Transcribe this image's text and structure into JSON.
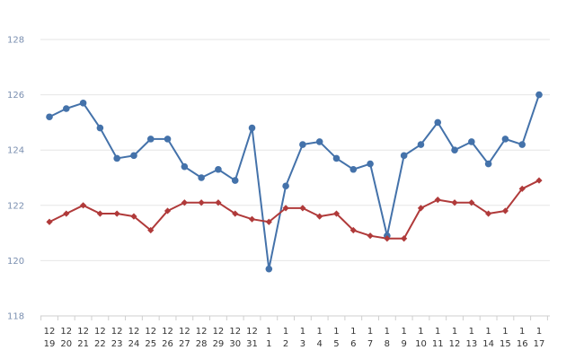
{
  "chart_data": {
    "type": "line",
    "title": "",
    "xlabel": "",
    "ylabel": "",
    "ylim": [
      118,
      128
    ],
    "yticks": [
      118,
      120,
      122,
      124,
      126,
      128
    ],
    "grid": true,
    "categories": [
      [
        "12",
        "19"
      ],
      [
        "12",
        "20"
      ],
      [
        "12",
        "21"
      ],
      [
        "12",
        "22"
      ],
      [
        "12",
        "23"
      ],
      [
        "12",
        "24"
      ],
      [
        "12",
        "25"
      ],
      [
        "12",
        "26"
      ],
      [
        "12",
        "27"
      ],
      [
        "12",
        "28"
      ],
      [
        "12",
        "29"
      ],
      [
        "12",
        "30"
      ],
      [
        "12",
        "31"
      ],
      [
        "1",
        "1"
      ],
      [
        "1",
        "2"
      ],
      [
        "1",
        "3"
      ],
      [
        "1",
        "4"
      ],
      [
        "1",
        "5"
      ],
      [
        "1",
        "6"
      ],
      [
        "1",
        "7"
      ],
      [
        "1",
        "8"
      ],
      [
        "1",
        "9"
      ],
      [
        "1",
        "10"
      ],
      [
        "1",
        "11"
      ],
      [
        "1",
        "12"
      ],
      [
        "1",
        "13"
      ],
      [
        "1",
        "14"
      ],
      [
        "1",
        "15"
      ],
      [
        "1",
        "16"
      ],
      [
        "1",
        "17"
      ]
    ],
    "series": [
      {
        "color": "#4472aa",
        "marker": "circle",
        "values": [
          125.2,
          125.5,
          125.7,
          124.8,
          123.7,
          123.8,
          124.4,
          124.4,
          123.4,
          123.0,
          123.3,
          122.9,
          124.8,
          119.7,
          122.7,
          124.2,
          124.3,
          123.7,
          123.3,
          123.5,
          120.9,
          123.8,
          124.2,
          125.0,
          124.0,
          124.3,
          123.5,
          124.4,
          124.2,
          126.0
        ]
      },
      {
        "color": "#b03a3a",
        "marker": "diamond",
        "values": [
          121.4,
          121.7,
          122.0,
          121.7,
          121.7,
          121.6,
          121.1,
          121.8,
          122.1,
          122.1,
          122.1,
          121.7,
          121.5,
          121.4,
          121.9,
          121.9,
          121.6,
          121.7,
          121.1,
          120.9,
          120.8,
          120.8,
          121.9,
          122.2,
          122.1,
          122.1,
          121.7,
          121.8,
          122.6,
          122.9
        ]
      }
    ]
  }
}
